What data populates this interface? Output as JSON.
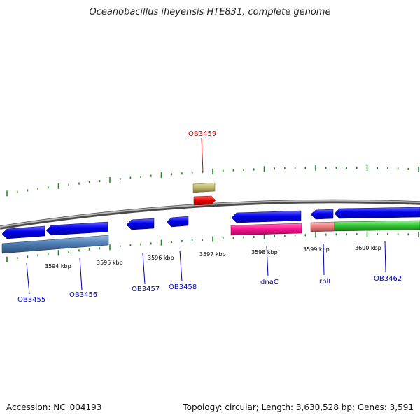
{
  "title": "Oceanobacillus iheyensis HTE831, complete genome",
  "footer": {
    "accession": "Accession: NC_004193",
    "stats": "Topology: circular; Length: 3,630,528 bp; Genes: 3,591"
  },
  "colors": {
    "background": "#ffffff",
    "backbone": "#8a8a8a",
    "tick": "#1a8a1a",
    "cds_forward": "#0000ee",
    "cds_reverse": "#0000ee",
    "rrna": "#ff1493",
    "gene_steelblue": "#4f7fb5",
    "gene_green": "#33cc33",
    "gene_salmon": "#f08080",
    "trna_khaki": "#bdb76b",
    "highlight_red": "#ee0000",
    "label_blue": "#0000aa",
    "label_red": "#cc0000"
  },
  "ruler": {
    "labels": [
      "3594 kbp",
      "3595 kbp",
      "3596 kbp",
      "3597 kbp",
      "3598 kbp",
      "3599 kbp",
      "3600 kbp"
    ]
  },
  "genes": [
    {
      "label": "OB3455",
      "color": "label_blue"
    },
    {
      "label": "OB3456",
      "color": "label_blue"
    },
    {
      "label": "OB3457",
      "color": "label_blue"
    },
    {
      "label": "OB3458",
      "color": "label_blue"
    },
    {
      "label": "OB3459",
      "color": "label_red"
    },
    {
      "label": "dnaC",
      "color": "label_blue"
    },
    {
      "label": "rplI",
      "color": "label_blue"
    },
    {
      "label": "OB3462",
      "color": "label_blue"
    }
  ]
}
